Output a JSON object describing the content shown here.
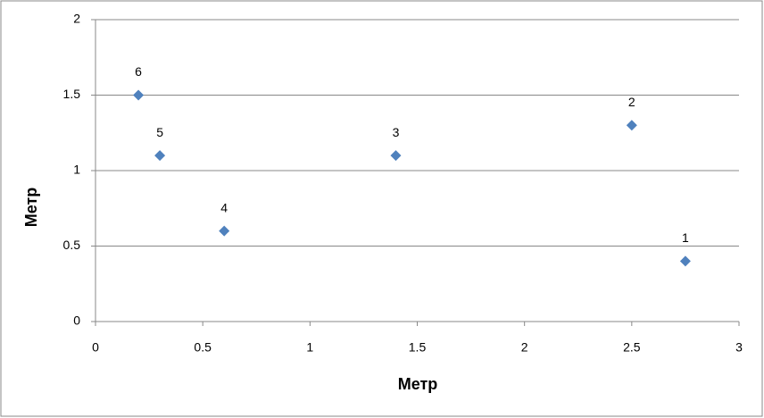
{
  "chart_data": {
    "type": "scatter",
    "x_label": "Метр",
    "y_label": "Метр",
    "x": [
      2.75,
      2.5,
      1.4,
      0.6,
      0.3,
      0.2
    ],
    "y": [
      0.4,
      1.3,
      1.1,
      0.6,
      1.1,
      1.5
    ],
    "point_labels": [
      "1",
      "2",
      "3",
      "4",
      "5",
      "6"
    ],
    "color": "#4f81bd",
    "xlim": [
      0,
      3
    ],
    "xticks": [
      0,
      0.5,
      1,
      1.5,
      2,
      2.5,
      3
    ],
    "ylim": [
      0,
      2
    ],
    "yticks": [
      0,
      0.5,
      1,
      1.5,
      2
    ],
    "grid": true
  }
}
